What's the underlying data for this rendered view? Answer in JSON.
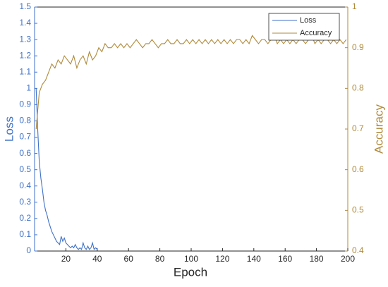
{
  "chart_data": {
    "type": "line",
    "xlabel": "Epoch",
    "ylabel": "Loss",
    "y2label": "Accuracy",
    "xlim": [
      0,
      200
    ],
    "xticks": [
      20,
      40,
      60,
      80,
      100,
      120,
      140,
      160,
      180,
      200
    ],
    "ylim": [
      0,
      1.5
    ],
    "yticks": [
      0,
      0.1,
      0.2,
      0.3,
      0.4,
      0.5,
      0.6,
      0.7,
      0.8,
      0.9,
      1,
      1.1,
      1.2,
      1.3,
      1.4,
      1.5
    ],
    "y2lim": [
      0.4,
      1
    ],
    "y2ticks": [
      0.4,
      0.5,
      0.6,
      0.7,
      0.8,
      0.9,
      1
    ],
    "legend": "upper right",
    "series": [
      {
        "name": "Loss",
        "color": "#3f72c8",
        "axis": "y",
        "x": [
          1,
          2,
          3,
          4,
          5,
          6,
          7,
          8,
          9,
          10,
          11,
          12,
          13,
          14,
          15,
          16,
          17,
          18,
          19,
          20,
          21,
          22,
          23,
          24,
          25,
          26,
          27,
          28,
          29,
          30,
          31,
          32,
          33,
          34,
          35,
          36,
          37,
          38,
          39,
          40
        ],
        "values": [
          1.0,
          0.75,
          0.55,
          0.45,
          0.38,
          0.3,
          0.25,
          0.22,
          0.18,
          0.15,
          0.12,
          0.1,
          0.08,
          0.06,
          0.05,
          0.04,
          0.09,
          0.06,
          0.08,
          0.05,
          0.04,
          0.03,
          0.02,
          0.03,
          0.02,
          0.04,
          0.02,
          0.01,
          0.02,
          0.01,
          0.05,
          0.02,
          0.01,
          0.03,
          0.01,
          0.02,
          0.05,
          0.01,
          0.02,
          0.01
        ]
      },
      {
        "name": "Accuracy",
        "color": "#b08a3a",
        "axis": "y2",
        "x": [
          1,
          3,
          5,
          7,
          9,
          11,
          13,
          15,
          17,
          19,
          21,
          23,
          25,
          27,
          29,
          31,
          33,
          35,
          37,
          39,
          41,
          43,
          45,
          47,
          49,
          51,
          53,
          55,
          57,
          59,
          61,
          63,
          65,
          67,
          69,
          71,
          73,
          75,
          77,
          79,
          81,
          83,
          85,
          87,
          89,
          91,
          93,
          95,
          97,
          99,
          101,
          103,
          105,
          107,
          109,
          111,
          113,
          115,
          117,
          119,
          121,
          123,
          125,
          127,
          129,
          131,
          133,
          135,
          137,
          139,
          141,
          143,
          145,
          147,
          149,
          151,
          153,
          155,
          157,
          159,
          161,
          163,
          165,
          167,
          169,
          171,
          173,
          175,
          177,
          179,
          181,
          183,
          185,
          187,
          189,
          191,
          193,
          195,
          197,
          199
        ],
        "values": [
          0.7,
          0.79,
          0.81,
          0.82,
          0.84,
          0.86,
          0.85,
          0.87,
          0.86,
          0.88,
          0.87,
          0.86,
          0.88,
          0.85,
          0.87,
          0.88,
          0.86,
          0.89,
          0.87,
          0.88,
          0.9,
          0.89,
          0.91,
          0.9,
          0.9,
          0.91,
          0.9,
          0.91,
          0.9,
          0.91,
          0.9,
          0.91,
          0.92,
          0.91,
          0.9,
          0.91,
          0.91,
          0.92,
          0.91,
          0.9,
          0.91,
          0.91,
          0.92,
          0.91,
          0.91,
          0.92,
          0.91,
          0.91,
          0.92,
          0.91,
          0.92,
          0.91,
          0.92,
          0.91,
          0.92,
          0.91,
          0.92,
          0.91,
          0.92,
          0.91,
          0.92,
          0.91,
          0.92,
          0.91,
          0.92,
          0.92,
          0.91,
          0.92,
          0.91,
          0.93,
          0.92,
          0.91,
          0.92,
          0.92,
          0.91,
          0.92,
          0.93,
          0.91,
          0.92,
          0.91,
          0.92,
          0.91,
          0.92,
          0.91,
          0.92,
          0.92,
          0.91,
          0.92,
          0.93,
          0.91,
          0.92,
          0.91,
          0.92,
          0.92,
          0.91,
          0.92,
          0.91,
          0.92,
          0.91,
          0.92
        ]
      }
    ]
  }
}
